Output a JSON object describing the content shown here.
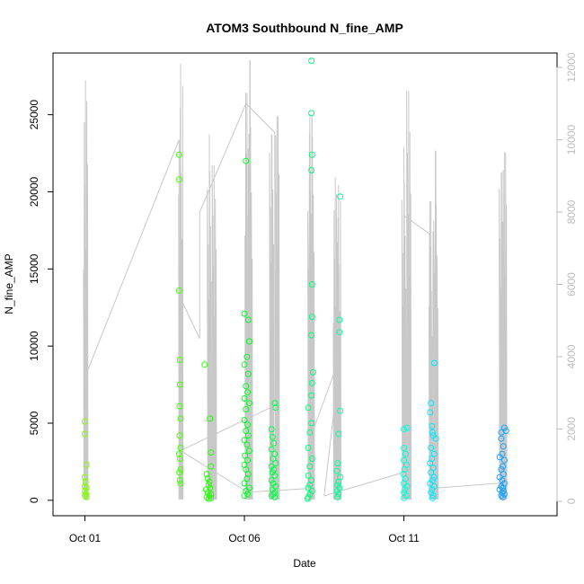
{
  "chart_data": {
    "type": "scatter",
    "title": "ATOM3 Southbound N_fine_AMP",
    "xlabel": "Date",
    "ylabel": "N_fine_AMP",
    "x_tick_labels": [
      "Oct 01",
      "Oct 06",
      "Oct 11"
    ],
    "x_tick_days": [
      1,
      6,
      11
    ],
    "xlim_days": [
      0.0,
      15.8
    ],
    "ylim": [
      -1000,
      29000
    ],
    "y_ticks": [
      0,
      5000,
      10000,
      15000,
      20000,
      25000
    ],
    "y_tick_labels": [
      "0",
      "5000",
      "10000",
      "15000",
      "20000",
      "25000"
    ],
    "y2lim": [
      -400,
      12400
    ],
    "y2_ticks": [
      0,
      2000,
      4000,
      6000,
      8000,
      10000,
      12000
    ],
    "y2_tick_labels": [
      "0",
      "2000",
      "4000",
      "6000",
      "8000",
      "10000",
      "12000"
    ],
    "grey_series_color": "#c8c8c8",
    "grey_series_note_axis": "right",
    "grey_spikes": [
      {
        "day": 1.02,
        "peak": 11650,
        "min": 50
      },
      {
        "day": 4.0,
        "peak": 12100,
        "min": 50
      },
      {
        "day": 4.9,
        "peak": 10150,
        "min": 50
      },
      {
        "day": 5.05,
        "peak": 9300,
        "min": 50
      },
      {
        "day": 6.08,
        "peak": 11300,
        "min": 50
      },
      {
        "day": 6.18,
        "peak": 12200,
        "min": 50
      },
      {
        "day": 6.85,
        "peak": 10150,
        "min": 50
      },
      {
        "day": 7.02,
        "peak": 10650,
        "min": 50
      },
      {
        "day": 8.05,
        "peak": 10700,
        "min": 50
      },
      {
        "day": 8.12,
        "peak": 10600,
        "min": 50
      },
      {
        "day": 8.85,
        "peak": 8950,
        "min": 50
      },
      {
        "day": 8.95,
        "peak": 8750,
        "min": 50
      },
      {
        "day": 11.0,
        "peak": 9800,
        "min": 50
      },
      {
        "day": 11.15,
        "peak": 11350,
        "min": 50
      },
      {
        "day": 11.85,
        "peak": 8300,
        "min": 50
      },
      {
        "day": 12.0,
        "peak": 9700,
        "min": 50
      },
      {
        "day": 14.05,
        "peak": 9100,
        "min": 50
      },
      {
        "day": 14.15,
        "peak": 9650,
        "min": 50
      }
    ],
    "grey_connector": [
      [
        1.1,
        3650
      ],
      [
        3.95,
        10000
      ],
      [
        3.95,
        5700
      ],
      [
        4.6,
        4500
      ],
      [
        4.6,
        8000
      ],
      [
        6.05,
        11000
      ],
      [
        6.95,
        10200
      ],
      [
        6.95,
        2650
      ],
      [
        4.0,
        1400
      ],
      [
        6.1,
        250
      ],
      [
        8.0,
        350
      ],
      [
        8.0,
        1600
      ],
      [
        9.0,
        4000
      ],
      [
        8.5,
        150
      ],
      [
        11.0,
        800
      ],
      [
        11.0,
        7900
      ],
      [
        11.8,
        7400
      ],
      [
        11.8,
        350
      ],
      [
        14.0,
        500
      ]
    ],
    "series": [
      {
        "color": "#7fff00",
        "points": [
          [
            1.0,
            5100
          ],
          [
            1.0,
            4300
          ],
          [
            1.05,
            2300
          ],
          [
            1.0,
            1500
          ],
          [
            1.02,
            1200
          ],
          [
            1.0,
            900
          ],
          [
            1.05,
            800
          ],
          [
            1.0,
            600
          ],
          [
            1.03,
            400
          ],
          [
            1.0,
            300
          ],
          [
            1.05,
            200
          ]
        ]
      },
      {
        "color": "#44ff00",
        "points": [
          [
            3.95,
            22400
          ],
          [
            3.95,
            20800
          ],
          [
            3.95,
            13600
          ],
          [
            3.98,
            9100
          ],
          [
            3.98,
            7500
          ],
          [
            3.97,
            6100
          ],
          [
            4.0,
            5300
          ],
          [
            3.97,
            4200
          ],
          [
            4.0,
            3400
          ],
          [
            3.95,
            3000
          ],
          [
            3.98,
            2700
          ],
          [
            4.0,
            2000
          ],
          [
            3.96,
            1800
          ],
          [
            3.98,
            1300
          ],
          [
            4.0,
            1100
          ]
        ]
      },
      {
        "color": "#22ff00",
        "points": [
          [
            4.75,
            8800
          ],
          [
            4.92,
            5300
          ],
          [
            4.95,
            3100
          ],
          [
            4.95,
            2200
          ],
          [
            4.82,
            1700
          ],
          [
            4.85,
            1400
          ],
          [
            4.9,
            1200
          ],
          [
            4.88,
            1000
          ],
          [
            4.92,
            800
          ],
          [
            4.8,
            700
          ],
          [
            4.85,
            500
          ],
          [
            4.95,
            400
          ],
          [
            4.9,
            300
          ],
          [
            4.82,
            200
          ],
          [
            4.95,
            150
          ],
          [
            4.88,
            100
          ]
        ]
      },
      {
        "color": "#00ff22",
        "points": [
          [
            6.05,
            22000
          ],
          [
            6.12,
            11700
          ],
          [
            6.0,
            12100
          ],
          [
            6.15,
            10300
          ],
          [
            6.08,
            9300
          ],
          [
            6.0,
            8800
          ],
          [
            6.12,
            8200
          ],
          [
            6.05,
            7400
          ],
          [
            6.1,
            7000
          ],
          [
            6.0,
            6600
          ],
          [
            6.15,
            6300
          ],
          [
            6.05,
            5900
          ],
          [
            6.0,
            5200
          ],
          [
            6.1,
            4900
          ],
          [
            6.05,
            4500
          ],
          [
            6.12,
            4200
          ],
          [
            6.0,
            3900
          ],
          [
            6.08,
            3600
          ],
          [
            6.15,
            3200
          ],
          [
            6.02,
            2900
          ],
          [
            6.1,
            2600
          ],
          [
            6.0,
            2300
          ],
          [
            6.05,
            2000
          ],
          [
            6.12,
            1700
          ],
          [
            6.08,
            1400
          ],
          [
            6.0,
            1100
          ],
          [
            6.15,
            800
          ],
          [
            6.05,
            600
          ],
          [
            6.1,
            400
          ],
          [
            6.0,
            300
          ]
        ]
      },
      {
        "color": "#00ff44",
        "points": [
          [
            6.85,
            4600
          ],
          [
            6.95,
            6300
          ],
          [
            6.98,
            6000
          ],
          [
            6.88,
            4100
          ],
          [
            6.92,
            3700
          ],
          [
            6.85,
            3300
          ],
          [
            6.95,
            3000
          ],
          [
            6.9,
            2700
          ],
          [
            6.98,
            2400
          ],
          [
            6.85,
            2200
          ],
          [
            6.92,
            2000
          ],
          [
            6.88,
            1800
          ],
          [
            6.95,
            1600
          ],
          [
            6.85,
            1300
          ],
          [
            6.9,
            1100
          ],
          [
            6.98,
            900
          ],
          [
            6.88,
            700
          ],
          [
            6.95,
            500
          ],
          [
            6.9,
            400
          ],
          [
            6.85,
            300
          ],
          [
            6.95,
            200
          ]
        ]
      },
      {
        "color": "#00ff77",
        "points": [
          [
            8.1,
            28500
          ],
          [
            8.1,
            25100
          ],
          [
            8.12,
            22400
          ],
          [
            8.1,
            21400
          ],
          [
            8.12,
            14000
          ],
          [
            8.12,
            11900
          ],
          [
            8.1,
            10700
          ],
          [
            8.15,
            8300
          ],
          [
            8.12,
            7600
          ],
          [
            8.1,
            6800
          ],
          [
            8.0,
            6000
          ],
          [
            8.1,
            5000
          ],
          [
            8.05,
            4400
          ],
          [
            8.0,
            3400
          ],
          [
            8.12,
            2700
          ],
          [
            8.05,
            2200
          ],
          [
            8.0,
            1600
          ],
          [
            8.1,
            1300
          ],
          [
            8.05,
            1000
          ],
          [
            8.0,
            800
          ],
          [
            8.12,
            600
          ],
          [
            8.05,
            400
          ],
          [
            8.0,
            200
          ],
          [
            7.98,
            100
          ]
        ]
      },
      {
        "color": "#00ff99",
        "points": [
          [
            9.0,
            19700
          ],
          [
            8.98,
            11700
          ],
          [
            8.98,
            10900
          ],
          [
            9.0,
            5800
          ],
          [
            8.95,
            4300
          ],
          [
            8.92,
            2400
          ],
          [
            8.9,
            1900
          ],
          [
            9.0,
            1500
          ],
          [
            8.95,
            1200
          ],
          [
            8.92,
            1000
          ],
          [
            8.98,
            800
          ],
          [
            8.9,
            600
          ],
          [
            8.95,
            400
          ],
          [
            8.92,
            200
          ]
        ]
      },
      {
        "color": "#00ffdd",
        "points": [
          [
            11.0,
            4600
          ],
          [
            11.1,
            4700
          ],
          [
            11.0,
            3400
          ],
          [
            11.05,
            3000
          ],
          [
            11.0,
            2600
          ],
          [
            11.08,
            2300
          ],
          [
            11.02,
            2000
          ],
          [
            10.98,
            1700
          ],
          [
            11.05,
            1400
          ],
          [
            11.0,
            1100
          ],
          [
            11.1,
            900
          ],
          [
            11.03,
            700
          ],
          [
            11.0,
            500
          ],
          [
            11.08,
            300
          ],
          [
            11.0,
            150
          ]
        ]
      },
      {
        "color": "#00eaff",
        "points": [
          [
            11.95,
            8900
          ],
          [
            11.85,
            6300
          ],
          [
            11.82,
            5700
          ],
          [
            11.88,
            4800
          ],
          [
            11.9,
            4400
          ],
          [
            11.92,
            4200
          ],
          [
            12.0,
            4000
          ],
          [
            11.85,
            3400
          ],
          [
            11.95,
            3000
          ],
          [
            11.88,
            2700
          ],
          [
            11.82,
            2400
          ],
          [
            11.92,
            2100
          ],
          [
            11.85,
            1800
          ],
          [
            11.95,
            1500
          ],
          [
            11.9,
            1300
          ],
          [
            11.82,
            1100
          ],
          [
            11.95,
            900
          ],
          [
            11.88,
            700
          ],
          [
            11.85,
            500
          ],
          [
            11.92,
            300
          ],
          [
            11.9,
            150
          ]
        ]
      },
      {
        "color": "#18a2ff",
        "points": [
          [
            14.05,
            4000
          ],
          [
            14.15,
            4700
          ],
          [
            14.2,
            4500
          ],
          [
            14.05,
            4400
          ],
          [
            14.12,
            3500
          ],
          [
            14.08,
            3000
          ],
          [
            14.0,
            2800
          ],
          [
            14.15,
            2600
          ],
          [
            14.1,
            2200
          ],
          [
            14.05,
            2000
          ],
          [
            14.12,
            1700
          ],
          [
            14.0,
            1500
          ],
          [
            14.08,
            1300
          ],
          [
            14.15,
            1100
          ],
          [
            14.05,
            900
          ],
          [
            14.1,
            800
          ],
          [
            14.0,
            700
          ],
          [
            14.12,
            600
          ],
          [
            14.08,
            500
          ],
          [
            14.15,
            400
          ],
          [
            14.05,
            300
          ],
          [
            14.1,
            200
          ]
        ]
      }
    ]
  }
}
